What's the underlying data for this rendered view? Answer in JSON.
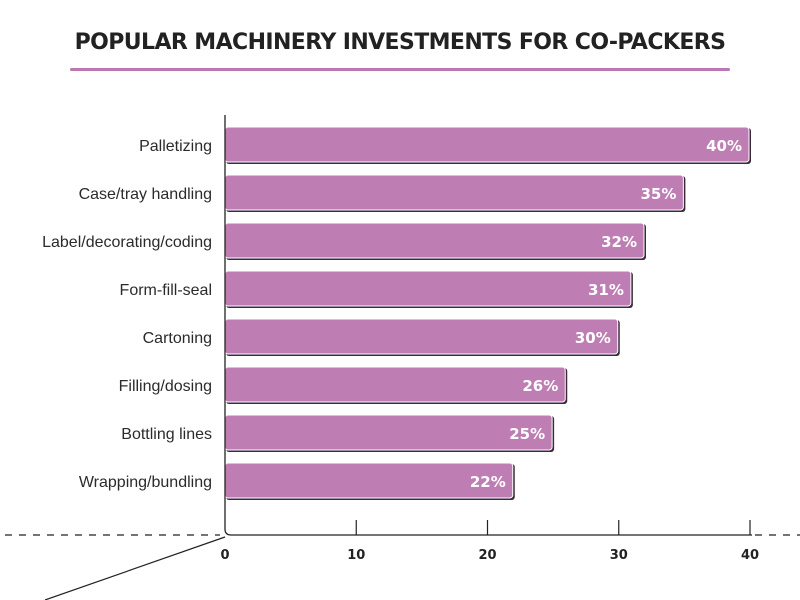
{
  "chart_data": {
    "type": "bar",
    "orientation": "horizontal",
    "title": "POPULAR MACHINERY INVESTMENTS FOR CO-PACKERS",
    "categories": [
      "Palletizing",
      "Case/tray handling",
      "Label/decorating/coding",
      "Form-fill-seal",
      "Cartoning",
      "Filling/dosing",
      "Bottling lines",
      "Wrapping/bundling"
    ],
    "values": [
      40,
      35,
      32,
      31,
      30,
      26,
      25,
      22
    ],
    "value_labels": [
      "40%",
      "35%",
      "32%",
      "31%",
      "30%",
      "26%",
      "25%",
      "22%"
    ],
    "xticks": [
      0,
      10,
      20,
      30,
      40
    ],
    "xlim": [
      0,
      40
    ],
    "xlabel": "",
    "ylabel": "",
    "grid": false,
    "legend": "none",
    "colors": {
      "bar": "#be7eb4",
      "bar_edge": "#3a2a38",
      "title_rule": "#b978b3",
      "axis": "#222222"
    }
  }
}
